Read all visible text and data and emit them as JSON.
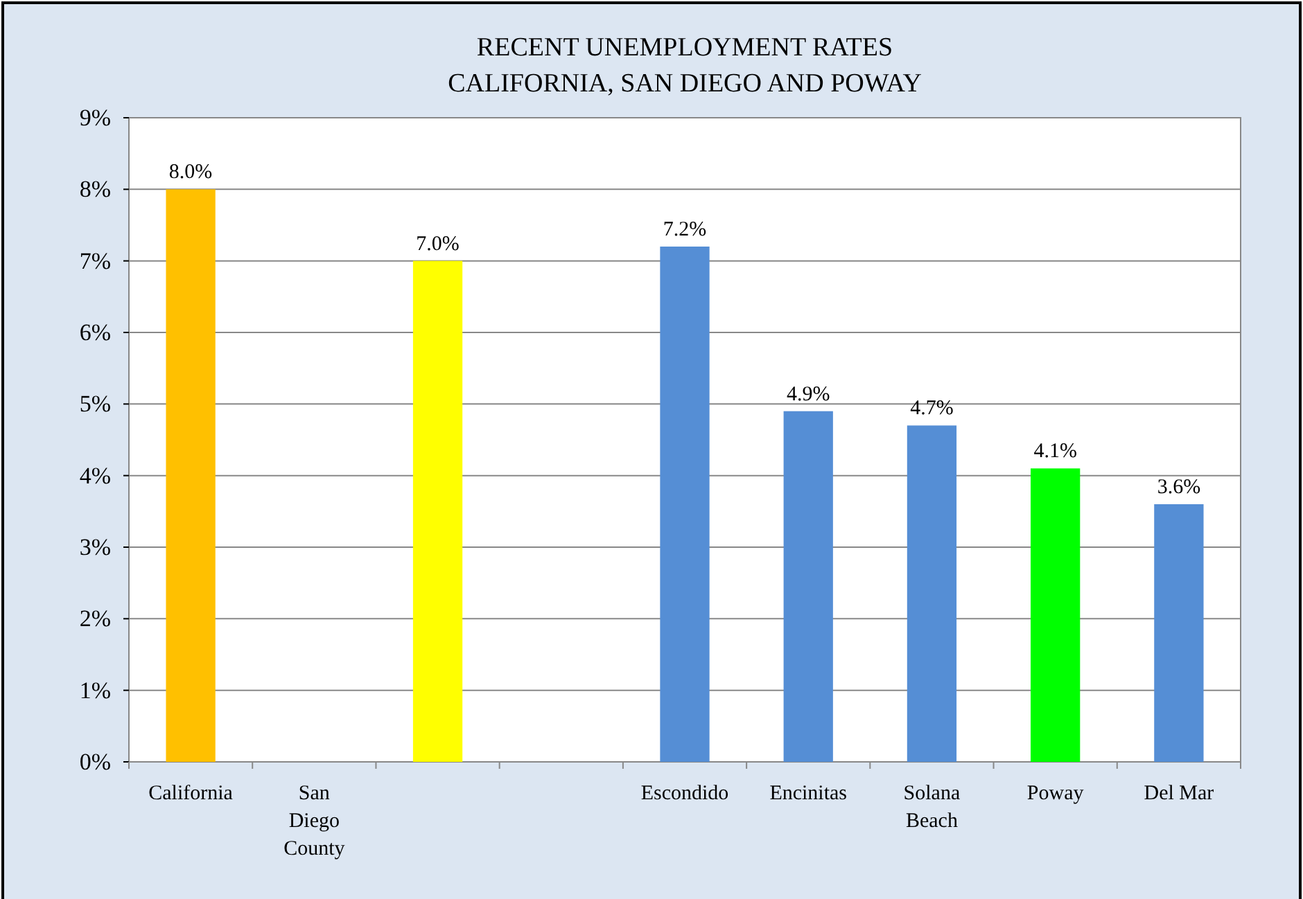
{
  "chart_data": {
    "type": "bar",
    "title": "RECENT UNEMPLOYMENT RATES\nCALIFORNIA, SAN DIEGO AND POWAY",
    "categories": [
      "California",
      "San Diego County",
      null,
      null,
      "Escondido",
      "Encinitas",
      "Solana Beach",
      "Poway",
      "Del Mar"
    ],
    "values": [
      8.0,
      null,
      7.0,
      null,
      7.2,
      4.9,
      4.7,
      4.1,
      3.6
    ],
    "value_labels": [
      "8.0%",
      null,
      "7.0%",
      null,
      "7.2%",
      "4.9%",
      "4.7%",
      "4.1%",
      "3.6%"
    ],
    "colors": [
      "#ffc000",
      null,
      "#ffff00",
      null,
      "#558ed5",
      "#558ed5",
      "#558ed5",
      "#00ff00",
      "#558ed5"
    ],
    "ylim": [
      0,
      9
    ],
    "yticks": [
      {
        "value": 0,
        "label": "0%"
      },
      {
        "value": 1,
        "label": "1%"
      },
      {
        "value": 2,
        "label": "2%"
      },
      {
        "value": 3,
        "label": "3%"
      },
      {
        "value": 4,
        "label": "4%"
      },
      {
        "value": 5,
        "label": "5%"
      },
      {
        "value": 6,
        "label": "6%"
      },
      {
        "value": 7,
        "label": "7%"
      },
      {
        "value": 8,
        "label": "8%"
      },
      {
        "value": 9,
        "label": "9%"
      }
    ],
    "grid": "y"
  }
}
